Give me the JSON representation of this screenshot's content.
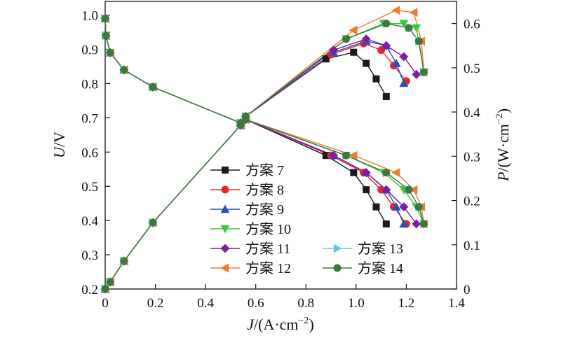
{
  "chart_data": {
    "type": "line",
    "x_axis": {
      "label_italic": "J",
      "label_rest": "/(A·cm",
      "label_sup": "−2",
      "label_end": ")",
      "range": [
        0,
        1.4
      ],
      "ticks": [
        "0",
        "0.2",
        "0.4",
        "0.6",
        "0.8",
        "1.0",
        "1.2",
        "1.4"
      ]
    },
    "y_left": {
      "label_italic": "U",
      "label_rest": "/V",
      "range": [
        0.2,
        1.04
      ],
      "ticks": [
        "0.2",
        "0.3",
        "0.4",
        "0.5",
        "0.6",
        "0.7",
        "0.8",
        "0.9",
        "1.0"
      ]
    },
    "y_right": {
      "label_italic": "P",
      "label_rest": "/(W·cm",
      "label_sup": "−2",
      "label_end": ")",
      "range": [
        0,
        0.65
      ],
      "ticks": [
        "0",
        "0.1",
        "0.2",
        "0.3",
        "0.4",
        "0.5",
        "0.6"
      ]
    },
    "legend_placement": "lower-center",
    "common_voltage": {
      "x": [
        0,
        0.003,
        0.02,
        0.075,
        0.19,
        0.54,
        0.56
      ],
      "y": [
        0.99,
        0.94,
        0.89,
        0.84,
        0.79,
        0.685,
        0.695
      ]
    },
    "common_power": {
      "x": [
        0,
        0.02,
        0.075,
        0.19,
        0.54,
        0.56
      ],
      "y": [
        0,
        0.016,
        0.063,
        0.15,
        0.37,
        0.39
      ]
    },
    "series": [
      {
        "name": "方案 7",
        "color": "#1a1a1a",
        "marker": "square",
        "voltage": {
          "x": [
            0.88,
            0.99,
            1.04,
            1.08,
            1.12
          ],
          "y": [
            0.59,
            0.54,
            0.49,
            0.44,
            0.39
          ]
        },
        "power": {
          "x": [
            0.88,
            0.99,
            1.04,
            1.08,
            1.12
          ],
          "y": [
            0.52,
            0.535,
            0.51,
            0.475,
            0.435
          ]
        }
      },
      {
        "name": "方案 8",
        "color": "#e8262b",
        "marker": "circle",
        "voltage": {
          "x": [
            0.9,
            1.03,
            1.1,
            1.15,
            1.2
          ],
          "y": [
            0.59,
            0.54,
            0.49,
            0.44,
            0.39
          ]
        },
        "power": {
          "x": [
            0.9,
            1.03,
            1.1,
            1.15,
            1.2
          ],
          "y": [
            0.53,
            0.555,
            0.54,
            0.505,
            0.47
          ]
        }
      },
      {
        "name": "方案 9",
        "color": "#2e4fb5",
        "marker": "triangle-up",
        "voltage": {
          "x": [
            0.91,
            1.04,
            1.12,
            1.16,
            1.19
          ],
          "y": [
            0.59,
            0.54,
            0.49,
            0.44,
            0.39
          ]
        },
        "power": {
          "x": [
            0.91,
            1.04,
            1.12,
            1.16,
            1.19
          ],
          "y": [
            0.535,
            0.56,
            0.55,
            0.51,
            0.465
          ]
        }
      },
      {
        "name": "方案 10",
        "color": "#3ec63e",
        "marker": "triangle-down",
        "voltage": {
          "x": [
            0.96,
            1.11,
            1.19,
            1.24,
            1.27
          ],
          "y": [
            0.59,
            0.54,
            0.49,
            0.44,
            0.39
          ]
        },
        "power": {
          "x": [
            0.96,
            1.11,
            1.19,
            1.24,
            1.27
          ],
          "y": [
            0.565,
            0.6,
            0.6,
            0.59,
            0.49
          ]
        }
      },
      {
        "name": "方案 11",
        "color": "#7b1ea2",
        "marker": "diamond",
        "voltage": {
          "x": [
            0.91,
            1.04,
            1.12,
            1.19,
            1.24
          ],
          "y": [
            0.59,
            0.54,
            0.49,
            0.44,
            0.39
          ]
        },
        "power": {
          "x": [
            0.91,
            1.04,
            1.12,
            1.19,
            1.24
          ],
          "y": [
            0.54,
            0.565,
            0.55,
            0.525,
            0.485
          ]
        }
      },
      {
        "name": "方案 12",
        "color": "#f07a2a",
        "marker": "triangle-left",
        "voltage": {
          "x": [
            0.99,
            1.16,
            1.23,
            1.26,
            1.27
          ],
          "y": [
            0.59,
            0.54,
            0.49,
            0.44,
            0.39
          ]
        },
        "power": {
          "x": [
            0.99,
            1.16,
            1.23,
            1.26,
            1.27
          ],
          "y": [
            0.585,
            0.63,
            0.625,
            0.56,
            0.49
          ]
        }
      },
      {
        "name": "方案 13",
        "color": "#5ec8e0",
        "marker": "triangle-right",
        "voltage": {
          "x": [
            0.96,
            1.12,
            1.21,
            1.25,
            1.27
          ],
          "y": [
            0.59,
            0.54,
            0.49,
            0.44,
            0.39
          ]
        },
        "power": {
          "x": [
            0.96,
            1.12,
            1.21,
            1.25,
            1.27
          ],
          "y": [
            0.565,
            0.6,
            0.59,
            0.56,
            0.49
          ]
        }
      },
      {
        "name": "方案 14",
        "color": "#3a7a3a",
        "marker": "circle",
        "voltage": {
          "x": [
            0.96,
            1.12,
            1.21,
            1.25,
            1.27
          ],
          "y": [
            0.59,
            0.54,
            0.49,
            0.44,
            0.39
          ]
        },
        "power": {
          "x": [
            0.96,
            1.12,
            1.21,
            1.25,
            1.27
          ],
          "y": [
            0.565,
            0.6,
            0.59,
            0.56,
            0.49
          ]
        }
      }
    ]
  }
}
